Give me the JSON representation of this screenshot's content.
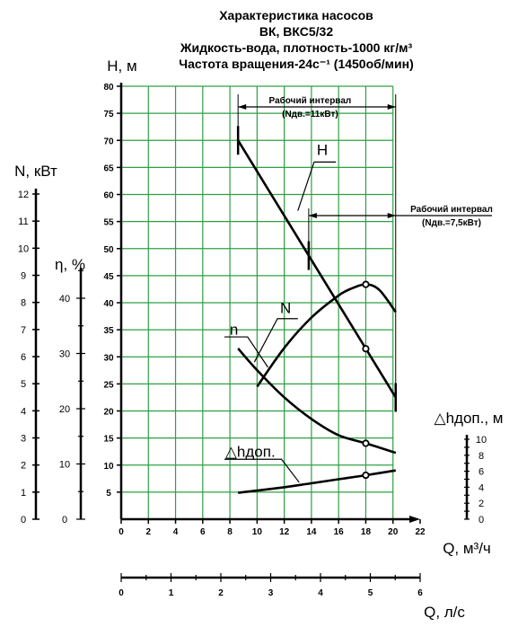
{
  "title": {
    "line1": "Характеристика насосов",
    "line2": "ВК, ВКС5/32",
    "line3": "Жидкость-вода, плотность-1000 кг/м³",
    "line4": "Частота вращения-24с⁻¹ (1450об/мин)"
  },
  "chart_data": {
    "type": "line",
    "x_axis": {
      "label": "Q, м³/ч",
      "range": [
        0,
        22
      ],
      "ticks": [
        "0",
        "2",
        "4",
        "6",
        "8",
        "10",
        "12",
        "14",
        "16",
        "18",
        "20",
        "22"
      ]
    },
    "x2_axis": {
      "label": "Q, л/с",
      "range": [
        0,
        6
      ],
      "ticks": [
        "0",
        "1",
        "2",
        "3",
        "4",
        "5",
        "6"
      ]
    },
    "y_axis_H": {
      "label": "H, м",
      "range": [
        0,
        80
      ],
      "ticks": [
        "5",
        "10",
        "15",
        "20",
        "25",
        "30",
        "35",
        "40",
        "45",
        "50",
        "55",
        "60",
        "65",
        "70",
        "75",
        "80"
      ]
    },
    "y_axis_N": {
      "label": "N, кВт",
      "range": [
        0,
        12
      ],
      "ticks": [
        "0",
        "1",
        "2",
        "3",
        "4",
        "5",
        "6",
        "7",
        "8",
        "9",
        "10",
        "11",
        "12"
      ]
    },
    "y_axis_eta": {
      "label": "η, %",
      "ticks": [
        "0",
        "10",
        "20",
        "30",
        "40"
      ]
    },
    "y_axis_dh": {
      "label": "△hдоп., м",
      "range": [
        0,
        10
      ],
      "ticks": [
        "0",
        "2",
        "4",
        "6",
        "8",
        "10"
      ]
    },
    "grid": true,
    "series": [
      {
        "name": "H",
        "x": [
          8.6,
          20.2
        ],
        "y": [
          70,
          22.5
        ]
      },
      {
        "name": "N",
        "x": [
          8.6,
          10,
          12,
          14,
          16,
          18,
          20.2
        ],
        "y": [
          6.3,
          5.5,
          4.5,
          3.7,
          3.1,
          2.8,
          2.45
        ]
      },
      {
        "name": "η",
        "x": [
          10,
          12,
          14,
          16,
          17,
          18,
          19,
          20.2
        ],
        "y": [
          24,
          31,
          36.5,
          40.5,
          41.8,
          42.5,
          41.5,
          37.5
        ]
      },
      {
        "name": "△hдоп.",
        "x": [
          8.6,
          12,
          14,
          16,
          18,
          20.2
        ],
        "y": [
          3.3,
          4.0,
          4.5,
          5.0,
          5.5,
          6.1
        ]
      }
    ],
    "markers": [
      {
        "series": "H",
        "x": 18,
        "y": 31.5
      },
      {
        "series": "N",
        "x": 18,
        "y": 2.8
      },
      {
        "series": "η",
        "x": 18,
        "y": 42.5
      },
      {
        "series": "△hдоп.",
        "x": 18,
        "y": 5.5
      }
    ],
    "annotations": [
      {
        "text": "Рабочий интервал",
        "sub": "(Nдв.=11кВт)",
        "x_from": 8.6,
        "x_to": 20.2
      },
      {
        "text": "Рабочий интервал",
        "sub": "(Nдв.=7,5кВт)",
        "x_from": 13.8,
        "x_to": 20.2
      }
    ]
  }
}
